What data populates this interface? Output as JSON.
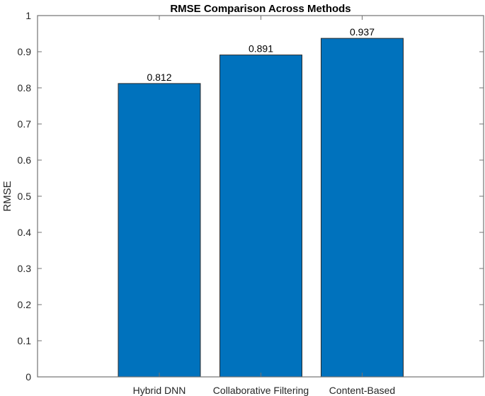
{
  "chart_data": {
    "type": "bar",
    "title": "RMSE Comparison Across Methods",
    "xlabel": "",
    "ylabel": "RMSE",
    "categories": [
      "Hybrid DNN",
      "Collaborative Filtering",
      "Content-Based"
    ],
    "values": [
      0.812,
      0.891,
      0.937
    ],
    "data_labels": [
      "0.812",
      "0.891",
      "0.937"
    ],
    "ylim": [
      0,
      1
    ],
    "yticks": [
      0,
      0.1,
      0.2,
      0.3,
      0.4,
      0.5,
      0.6,
      0.7,
      0.8,
      0.9,
      1
    ],
    "ytick_labels": [
      "0",
      "0.1",
      "0.2",
      "0.3",
      "0.4",
      "0.5",
      "0.6",
      "0.7",
      "0.8",
      "0.9",
      "1"
    ],
    "grid": false,
    "legend": null,
    "bar_color": "#0072BD",
    "bar_edge_color": "#2b2b2b",
    "axis_color": "#737373"
  }
}
